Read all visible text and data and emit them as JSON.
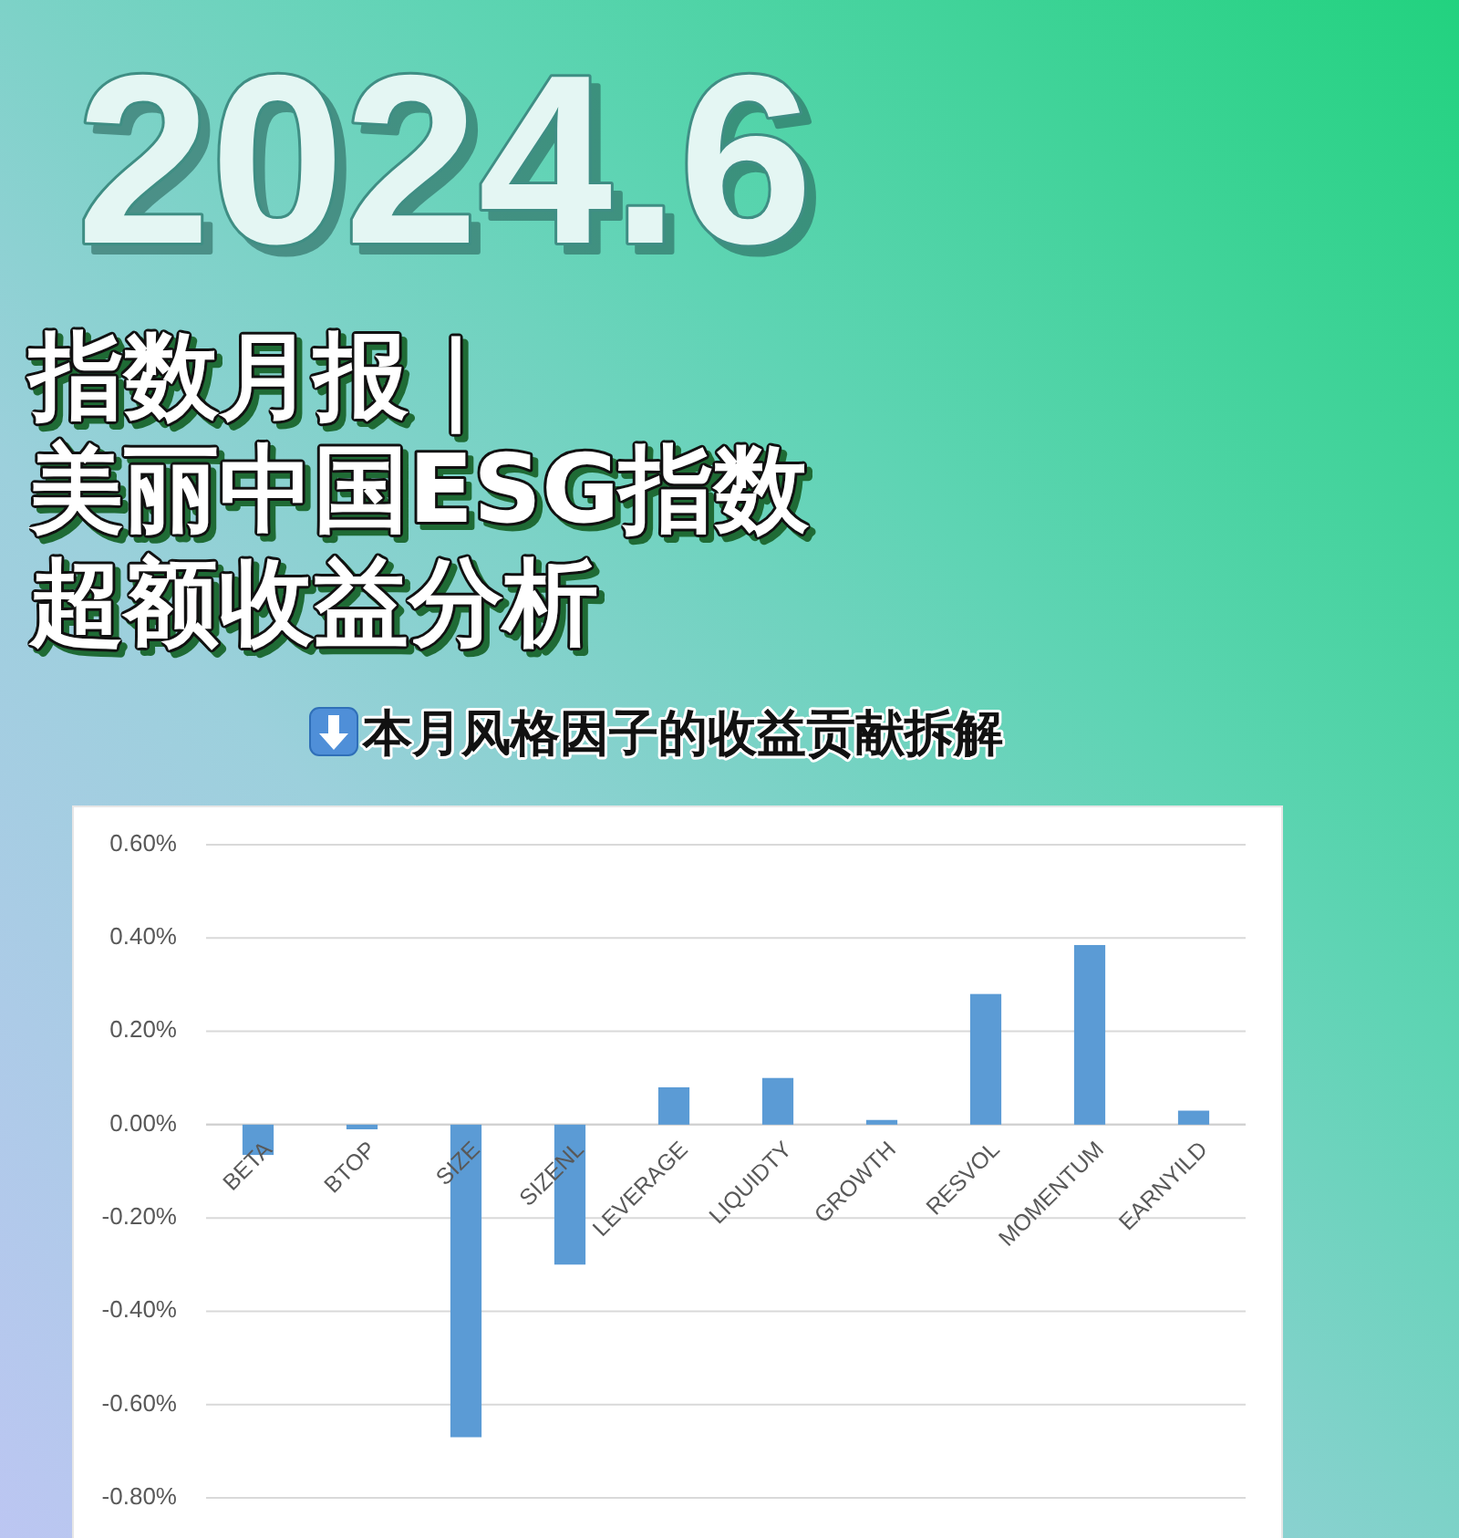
{
  "chart_data": {
    "type": "bar",
    "title": "指数月报｜美丽中国ESG指数超额收益分析",
    "subtitle": "本月风格因子的收益贡献拆解",
    "annotations": [
      "2024.6"
    ],
    "categories": [
      "BETA",
      "BTOP",
      "SIZE",
      "SIZENL",
      "LEVERAGE",
      "LIQUIDTY",
      "GROWTH",
      "RESVOL",
      "MOMENTUM",
      "EARNYILD"
    ],
    "values": [
      -0.065,
      -0.01,
      -0.67,
      -0.3,
      0.08,
      0.1,
      0.01,
      0.28,
      0.385,
      0.03
    ],
    "color": "#5b9bd5",
    "ylim": [
      -0.8,
      0.6
    ],
    "yticks": [
      {
        "value": -0.8,
        "label": "-0.80%"
      },
      {
        "value": -0.6,
        "label": "-0.60%"
      },
      {
        "value": -0.4,
        "label": "-0.40%"
      },
      {
        "value": -0.2,
        "label": "-0.20%"
      },
      {
        "value": 0,
        "label": "0.00%"
      },
      {
        "value": 0.2,
        "label": "0.20%"
      },
      {
        "value": 0.4,
        "label": "0.40%"
      },
      {
        "value": 0.6,
        "label": "0.60%"
      }
    ],
    "grid": "y"
  }
}
